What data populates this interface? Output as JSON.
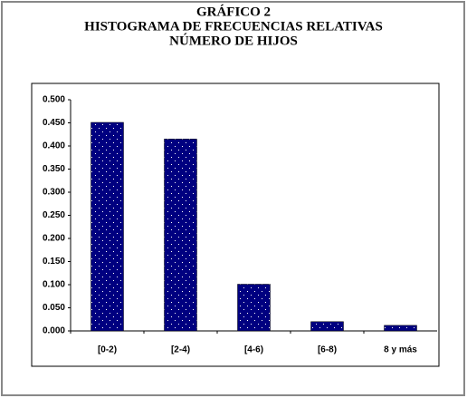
{
  "chart_data": {
    "type": "bar",
    "title": [
      "GRÁFICO 2",
      "HISTOGRAMA DE FRECUENCIAS RELATIVAS",
      "NÚMERO DE HIJOS"
    ],
    "categories": [
      "[0-2)",
      "[2-4)",
      "[4-6)",
      "[6-8)",
      "8 y más"
    ],
    "values": [
      0.451,
      0.415,
      0.101,
      0.02,
      0.012
    ],
    "color": "#000080",
    "ylim": [
      0,
      0.5
    ],
    "yticks": [
      {
        "value": 0,
        "label": "0.000"
      },
      {
        "value": 0.05,
        "label": "0.050"
      },
      {
        "value": 0.1,
        "label": "0.100"
      },
      {
        "value": 0.15,
        "label": "0.150"
      },
      {
        "value": 0.2,
        "label": "0.200"
      },
      {
        "value": 0.25,
        "label": "0.250"
      },
      {
        "value": 0.3,
        "label": "0.300"
      },
      {
        "value": 0.35,
        "label": "0.350"
      },
      {
        "value": 0.4,
        "label": "0.400"
      },
      {
        "value": 0.45,
        "label": "0.450"
      },
      {
        "value": 0.5,
        "label": "0.500"
      }
    ],
    "grid": false
  }
}
